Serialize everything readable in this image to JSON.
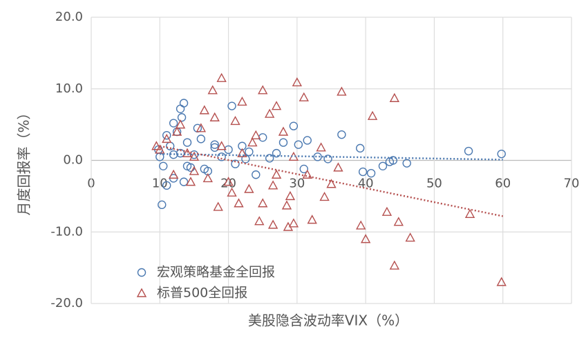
{
  "chart_data": {
    "type": "scatter",
    "xlabel": "美股隐含波动率VIX（%）",
    "ylabel": "月度回报率（%）",
    "xlim": [
      0,
      70
    ],
    "xticks": [
      0,
      10,
      20,
      30,
      40,
      50,
      60,
      70
    ],
    "ylim": [
      -20,
      20
    ],
    "yticks": [
      {
        "value": -20,
        "label": "-20.0"
      },
      {
        "value": -10,
        "label": "-10.0"
      },
      {
        "value": 0,
        "label": "0.0"
      },
      {
        "value": 10,
        "label": "10.0"
      },
      {
        "value": 20,
        "label": "20.0"
      }
    ],
    "grid": true,
    "legend": "lower-left",
    "series": [
      {
        "name": "宏观策略基金全回报",
        "color": "#4a78b0",
        "marker": "circle",
        "x": [
          10.3,
          36.5,
          39.2,
          39.6,
          40.8,
          42.5,
          43.5,
          44,
          46,
          55,
          59.8,
          33,
          34.5,
          31.5,
          30.2,
          29.5,
          20.5,
          13.5,
          13,
          12,
          31,
          28,
          25,
          10,
          11,
          11.5,
          12.5,
          13,
          14,
          14.5,
          15,
          16,
          17,
          18,
          19,
          21,
          22,
          23,
          24,
          26,
          27,
          11,
          12,
          13.2,
          14,
          15.5,
          16.5,
          18,
          20,
          22.5,
          9.8,
          10.5,
          12,
          13.5
        ],
        "values": [
          -6.2,
          3.6,
          1.7,
          -1.6,
          -1.8,
          -0.8,
          -0.2,
          0,
          -0.4,
          1.3,
          0.9,
          0.5,
          0.2,
          2.8,
          2.2,
          4.8,
          7.6,
          8,
          7.2,
          5.2,
          -1.2,
          2.5,
          3.2,
          0.5,
          3.5,
          2,
          4,
          1,
          2.5,
          -1,
          0.8,
          3,
          -1.5,
          1.8,
          0.5,
          -0.5,
          2,
          1.2,
          -2,
          0.3,
          1,
          -3.5,
          -2.5,
          6,
          -0.8,
          4.5,
          -1.2,
          2.2,
          1.5,
          0.2,
          1.5,
          -0.8,
          0.8,
          -3
        ],
        "trendline": {
          "x": [
            10,
            60
          ],
          "values": [
            0.9,
            0.1
          ]
        }
      },
      {
        "name": "标普500全回报",
        "color": "#b5504f",
        "marker": "triangle",
        "x": [
          19,
          30,
          36.5,
          44.2,
          41,
          31,
          34,
          35,
          39.3,
          40,
          43.1,
          44.8,
          46.5,
          44.2,
          55.2,
          59.8,
          32.2,
          28.7,
          29.5,
          28.5,
          26.5,
          24.5,
          18.5,
          17.7,
          25,
          27,
          22,
          9.5,
          36,
          33.5,
          10,
          11,
          12,
          13,
          14,
          15,
          16,
          17,
          18,
          19,
          20,
          21,
          22,
          23,
          24,
          25,
          26,
          27,
          28,
          29,
          12.5,
          14.5,
          16.5,
          20.5,
          23.5,
          26.5,
          29.5,
          31.5,
          15,
          21.5
        ],
        "values": [
          11.5,
          10.9,
          9.6,
          8.7,
          6.2,
          8.8,
          -5.1,
          -3.3,
          -9.1,
          -11,
          -7.2,
          -8.6,
          -10.8,
          -14.7,
          -7.5,
          -17,
          -8.3,
          -9.3,
          -8.8,
          -6.3,
          -9,
          -8.5,
          -6.5,
          9.8,
          9.8,
          7.6,
          8.2,
          2,
          -1,
          1.8,
          1.5,
          3,
          -2,
          5,
          1,
          -1.5,
          4.5,
          -2.5,
          6,
          2,
          -3,
          5.5,
          1,
          -4,
          3.5,
          -6,
          6.5,
          -2,
          4,
          -5,
          4,
          -3,
          7,
          -4.5,
          2.5,
          -3.5,
          0.5,
          -2,
          0.5,
          -6
        ],
        "trendline": {
          "x": [
            10,
            60
          ],
          "values": [
            2,
            -7.8
          ]
        }
      }
    ]
  }
}
